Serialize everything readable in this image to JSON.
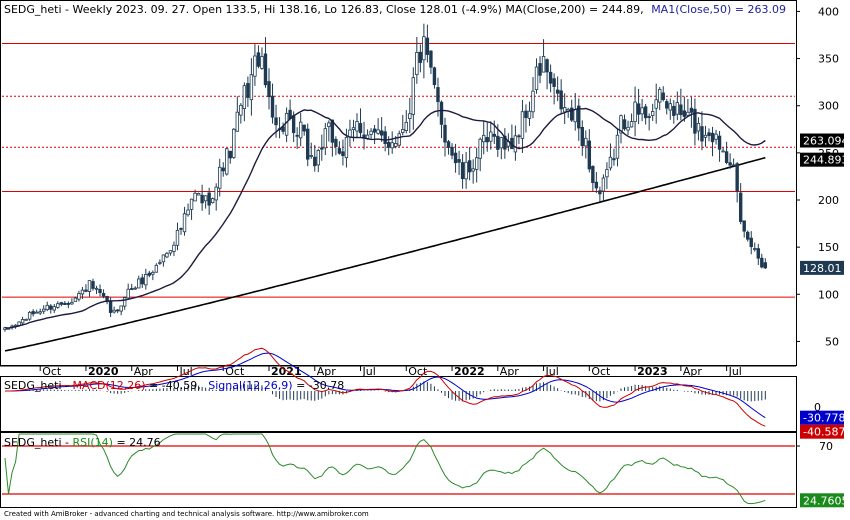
{
  "chart_data": {
    "type": "candlestick",
    "title": "SEDG_heti - Weekly 2023. 09. 27. Open 133.5, Hi 138.16, Lo 126.83, Close 128.01 (-4.9%)",
    "ma200_label": "MA(Close,200) = 244.89,",
    "ma50_label": "MA1(Close,50) = 263.09",
    "ohlc": {
      "open": 133.5,
      "high": 138.16,
      "low": 126.83,
      "close": 128.01
    },
    "price_ylim": [
      25,
      410
    ],
    "price_ticks": [
      50,
      100,
      150,
      200,
      250,
      300,
      350,
      400
    ],
    "x_ticks": [
      {
        "label": "Oct",
        "idx": 10,
        "bold": false
      },
      {
        "label": "2020",
        "idx": 23,
        "bold": true
      },
      {
        "label": "Apr",
        "idx": 36,
        "bold": false
      },
      {
        "label": "Jul",
        "idx": 49,
        "bold": false
      },
      {
        "label": "Oct",
        "idx": 62,
        "bold": false
      },
      {
        "label": "2021",
        "idx": 75,
        "bold": true
      },
      {
        "label": "Apr",
        "idx": 88,
        "bold": false
      },
      {
        "label": "Jul",
        "idx": 101,
        "bold": false
      },
      {
        "label": "Oct",
        "idx": 114,
        "bold": false
      },
      {
        "label": "2022",
        "idx": 127,
        "bold": true
      },
      {
        "label": "Apr",
        "idx": 140,
        "bold": false
      },
      {
        "label": "Jul",
        "idx": 153,
        "bold": false
      },
      {
        "label": "Oct",
        "idx": 166,
        "bold": false
      },
      {
        "label": "2023",
        "idx": 179,
        "bold": true
      },
      {
        "label": "Apr",
        "idx": 192,
        "bold": false
      },
      {
        "label": "Jul",
        "idx": 205,
        "bold": false
      }
    ],
    "horizontal_lines": [
      {
        "value": 366,
        "style": "solid"
      },
      {
        "value": 310,
        "style": "dotted"
      },
      {
        "value": 256,
        "style": "dotted"
      },
      {
        "value": 209,
        "style": "solid"
      },
      {
        "value": 97,
        "style": "solid"
      }
    ],
    "close_anchors": [
      [
        0,
        62
      ],
      [
        4,
        70
      ],
      [
        8,
        80
      ],
      [
        12,
        86
      ],
      [
        16,
        90
      ],
      [
        20,
        96
      ],
      [
        24,
        110
      ],
      [
        28,
        95
      ],
      [
        30,
        82
      ],
      [
        32,
        80
      ],
      [
        34,
        100
      ],
      [
        38,
        112
      ],
      [
        42,
        125
      ],
      [
        46,
        145
      ],
      [
        50,
        170
      ],
      [
        54,
        205
      ],
      [
        57,
        198
      ],
      [
        60,
        215
      ],
      [
        62,
        240
      ],
      [
        64,
        250
      ],
      [
        66,
        285
      ],
      [
        68,
        310
      ],
      [
        70,
        330
      ],
      [
        72,
        355
      ],
      [
        74,
        320
      ],
      [
        76,
        300
      ],
      [
        78,
        270
      ],
      [
        80,
        290
      ],
      [
        82,
        260
      ],
      [
        84,
        275
      ],
      [
        86,
        250
      ],
      [
        88,
        240
      ],
      [
        90,
        260
      ],
      [
        92,
        270
      ],
      [
        96,
        250
      ],
      [
        100,
        280
      ],
      [
        104,
        270
      ],
      [
        108,
        260
      ],
      [
        112,
        270
      ],
      [
        115,
        300
      ],
      [
        117,
        350
      ],
      [
        119,
        360
      ],
      [
        121,
        330
      ],
      [
        123,
        300
      ],
      [
        125,
        270
      ],
      [
        127,
        250
      ],
      [
        130,
        225
      ],
      [
        133,
        240
      ],
      [
        136,
        260
      ],
      [
        140,
        265
      ],
      [
        143,
        255
      ],
      [
        146,
        275
      ],
      [
        149,
        300
      ],
      [
        151,
        330
      ],
      [
        153,
        345
      ],
      [
        156,
        310
      ],
      [
        159,
        295
      ],
      [
        162,
        285
      ],
      [
        165,
        260
      ],
      [
        167,
        220
      ],
      [
        169,
        205
      ],
      [
        171,
        225
      ],
      [
        173,
        250
      ],
      [
        175,
        280
      ],
      [
        178,
        295
      ],
      [
        181,
        290
      ],
      [
        185,
        305
      ],
      [
        189,
        300
      ],
      [
        192,
        290
      ],
      [
        195,
        285
      ],
      [
        198,
        270
      ],
      [
        200,
        275
      ],
      [
        203,
        260
      ],
      [
        205,
        250
      ],
      [
        207,
        245
      ],
      [
        208,
        205
      ],
      [
        209,
        170
      ],
      [
        210,
        162
      ],
      [
        211,
        157
      ],
      [
        212,
        152
      ],
      [
        213,
        146
      ],
      [
        214,
        140
      ],
      [
        215,
        134
      ],
      [
        216,
        128.01
      ]
    ],
    "ma50": {
      "value": 263.09,
      "label": "263.094",
      "badge_color": "#000000"
    },
    "ma200": {
      "value": 244.89,
      "label": "244.893",
      "badge_color": "#000000"
    },
    "last_close": {
      "value": 128.01,
      "label": "128.01",
      "badge_color": "#1e3a52"
    },
    "macd": {
      "title_prefix": "SEDG_heti - ",
      "macd_label": "MACD(12,26)",
      "macd_value": " = -40.59,",
      "signal_label": "Signal(12,26,9)",
      "signal_value": " = -30.78",
      "ylim": [
        -45,
        15
      ],
      "zero_label": "0",
      "signal_badge": {
        "label": "-30.7784",
        "color": "#0000cc"
      },
      "macd_badge": {
        "label": "-40.5872",
        "color": "#cc0000"
      }
    },
    "rsi": {
      "title_prefix": "SEDG_heti - ",
      "rsi_label": "RSI(14)",
      "rsi_value": " = 24.76",
      "ylim": [
        20,
        80
      ],
      "ticks": [
        70
      ],
      "lines": [
        70,
        30
      ],
      "badge": {
        "label": "24.7605",
        "color": "#1a8a1a"
      }
    },
    "footer": "Created with AmiBroker - advanced charting and technical analysis software. http://www.amibroker.com"
  }
}
